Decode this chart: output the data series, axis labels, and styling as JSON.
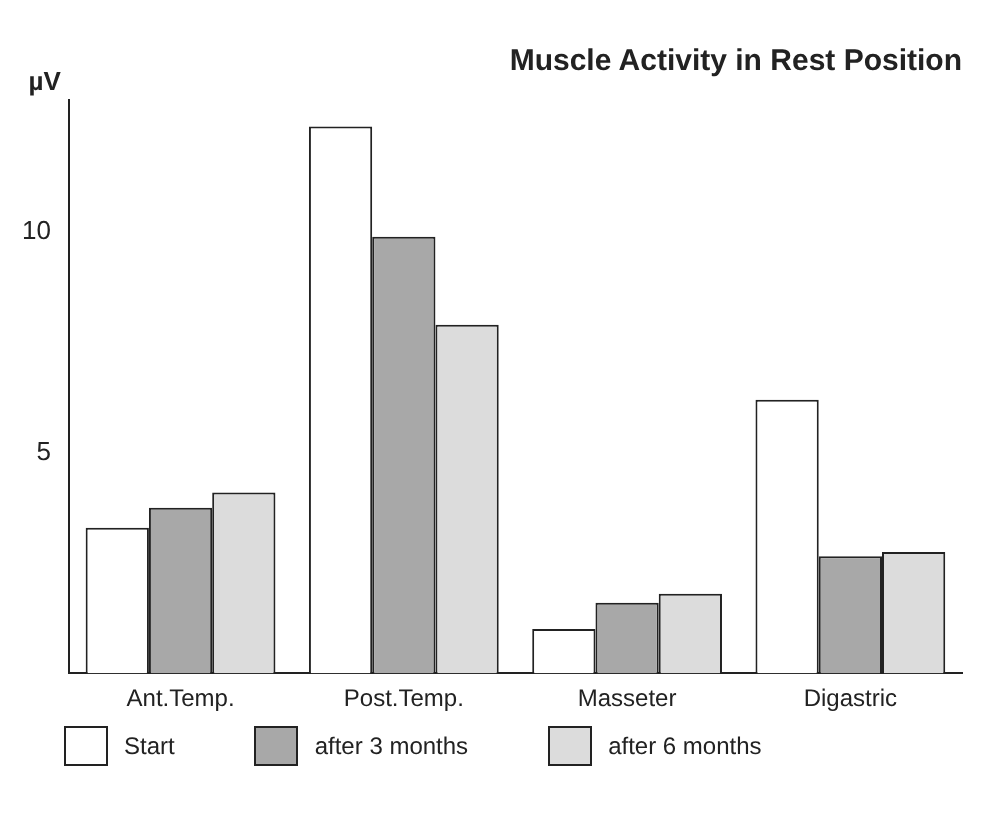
{
  "chart_data": {
    "type": "bar",
    "title": "Muscle Activity in Rest Position",
    "ylabel": "µV",
    "categories": [
      "Ant.Temp.",
      "Post.Temp.",
      "Masseter",
      "Digastric"
    ],
    "series": [
      {
        "name": "Start",
        "color": "#ffffff",
        "values": [
          3.3,
          12.4,
          1.0,
          6.2
        ]
      },
      {
        "name": "after 3 months",
        "color": "#a8a8a8",
        "values": [
          3.75,
          9.9,
          1.6,
          2.65
        ]
      },
      {
        "name": "after 6 months",
        "color": "#dcdcdc",
        "values": [
          4.1,
          7.9,
          1.8,
          2.75
        ]
      }
    ],
    "ylim": [
      0,
      13
    ],
    "yticks": [
      5,
      10
    ],
    "grid": false,
    "legend": "bottom"
  }
}
